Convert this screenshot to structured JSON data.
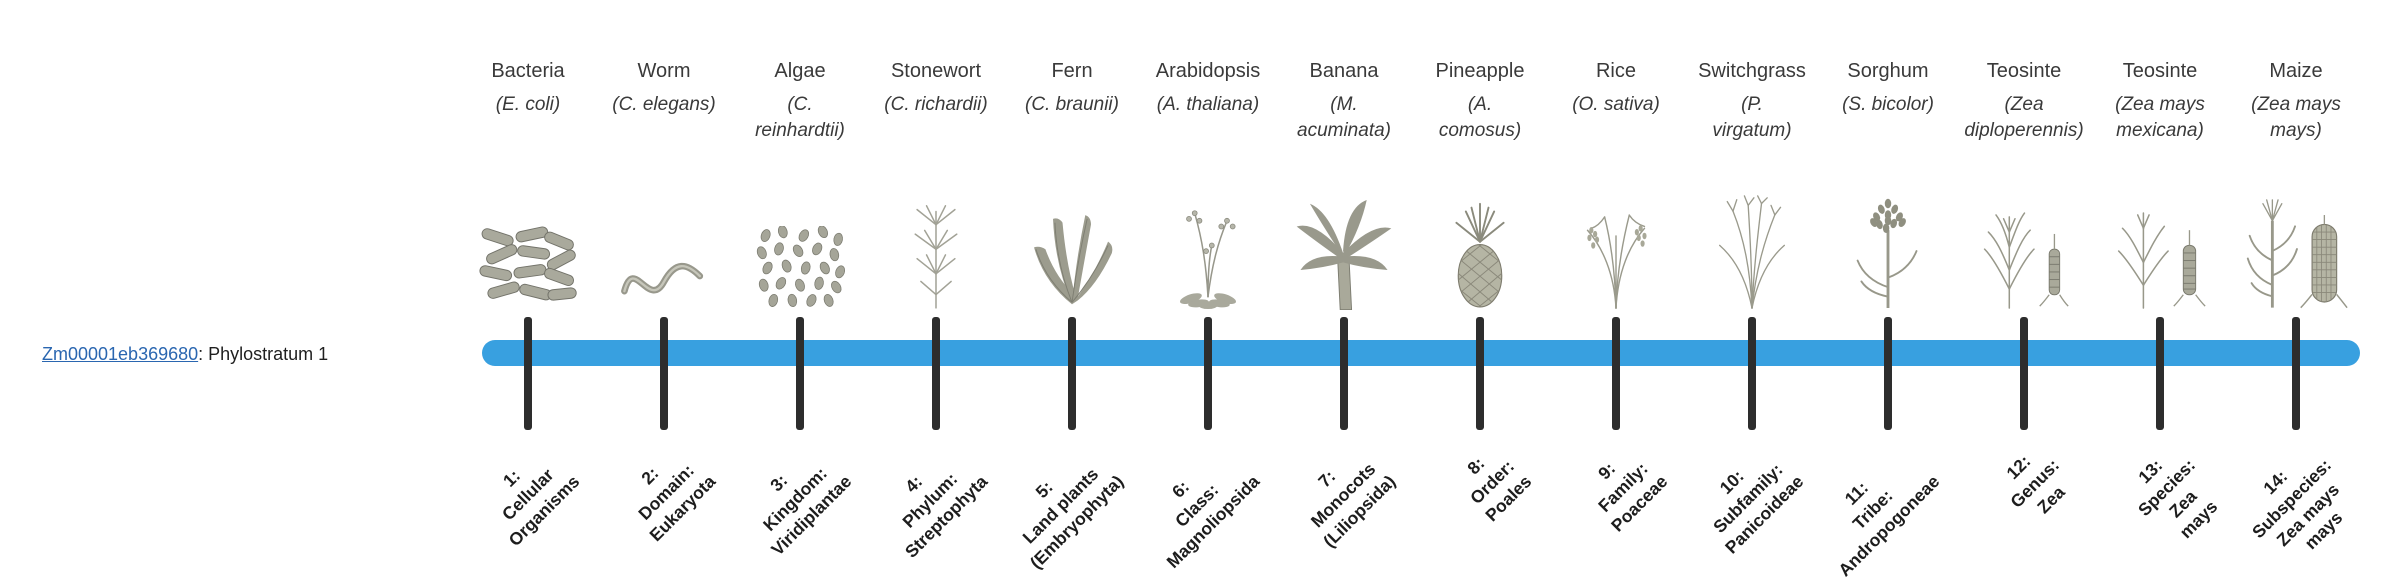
{
  "figure": {
    "background": "#ffffff",
    "bar_color": "#38a0e0",
    "tick_color": "#2d2d2d",
    "link_color": "#2a66b0",
    "gene": {
      "id": "Zm00001eb369680",
      "rest": ": Phylostratum 1"
    }
  },
  "organisms": [
    {
      "name": "Bacteria",
      "scientific_name": "(E. coli)",
      "sci_lines": [
        "(E. coli)"
      ],
      "icon": "bacteria-illustration",
      "tier_label": "1: Cellular Organisms",
      "tier_lines": [
        "1:",
        "Cellular",
        "Organisms"
      ]
    },
    {
      "name": "Worm",
      "scientific_name": "(C. elegans)",
      "sci_lines": [
        "(C. elegans)"
      ],
      "icon": "worm-illustration",
      "tier_label": "2: Domain: Eukaryota",
      "tier_lines": [
        "2:",
        "Domain:",
        "Eukaryota"
      ]
    },
    {
      "name": "Algae",
      "scientific_name": "(C. reinhardtii)",
      "sci_lines": [
        "(C.",
        "reinhardtii)"
      ],
      "icon": "algae-illustration",
      "tier_label": "3: Kingdom: Viridiplantae",
      "tier_lines": [
        "3:",
        "Kingdom:",
        "Viridiplantae"
      ]
    },
    {
      "name": "Stonewort",
      "scientific_name": "(C. richardii)",
      "sci_lines": [
        "(C. richardii)"
      ],
      "icon": "stonewort-illustration",
      "tier_label": "4: Phylum: Streptophyta",
      "tier_lines": [
        "4:",
        "Phylum:",
        "Streptophyta"
      ]
    },
    {
      "name": "Fern",
      "scientific_name": "(C. braunii)",
      "sci_lines": [
        "(C. braunii)"
      ],
      "icon": "fern-illustration",
      "tier_label": "5: Land plants (Embryophyta)",
      "tier_lines": [
        "5:",
        "Land plants",
        "(Embryophyta)"
      ]
    },
    {
      "name": "Arabidopsis",
      "scientific_name": "(A. thaliana)",
      "sci_lines": [
        "(A. thaliana)"
      ],
      "icon": "arabidopsis-illustration",
      "tier_label": "6: Class: Magnoliopsida",
      "tier_lines": [
        "6:",
        "Class:",
        "Magnoliopsida"
      ]
    },
    {
      "name": "Banana",
      "scientific_name": "(M. acuminata)",
      "sci_lines": [
        "(M.",
        "acuminata)"
      ],
      "icon": "banana-illustration",
      "tier_label": "7: Monocots (Liliopsida)",
      "tier_lines": [
        "7:",
        "Monocots",
        "(Liliopsida)"
      ]
    },
    {
      "name": "Pineapple",
      "scientific_name": "(A. comosus)",
      "sci_lines": [
        "(A.",
        "comosus)"
      ],
      "icon": "pineapple-illustration",
      "tier_label": "8: Order: Poales",
      "tier_lines": [
        "8:",
        "Order:",
        "Poales"
      ]
    },
    {
      "name": "Rice",
      "scientific_name": "(O. sativa)",
      "sci_lines": [
        "(O. sativa)"
      ],
      "icon": "rice-illustration",
      "tier_label": "9: Family: Poaceae",
      "tier_lines": [
        "9:",
        "Family:",
        "Poaceae"
      ]
    },
    {
      "name": "Switchgrass",
      "scientific_name": "(P. virgatum)",
      "sci_lines": [
        "(P.",
        "virgatum)"
      ],
      "icon": "switchgrass-illustration",
      "tier_label": "10: Subfamily: Panicoideae",
      "tier_lines": [
        "10:",
        "Subfamily:",
        "Panicoideae"
      ]
    },
    {
      "name": "Sorghum",
      "scientific_name": "(S. bicolor)",
      "sci_lines": [
        "(S. bicolor)"
      ],
      "icon": "sorghum-illustration",
      "tier_label": "11: Tribe: Andropogoneae",
      "tier_lines": [
        "11:",
        "Tribe:",
        "Andropogoneae"
      ]
    },
    {
      "name": "Teosinte",
      "scientific_name": "(Zea diploperennis)",
      "sci_lines": [
        "(Zea",
        "diploperennis)"
      ],
      "icon": "teosinte-diploperennis-illustration",
      "tier_label": "12: Genus: Zea",
      "tier_lines": [
        "12:",
        "Genus:",
        "Zea"
      ]
    },
    {
      "name": "Teosinte",
      "scientific_name": "(Zea mays mexicana)",
      "sci_lines": [
        "(Zea mays",
        "mexicana)"
      ],
      "icon": "teosinte-mexicana-illustration",
      "tier_label": "13: Species: Zea mays",
      "tier_lines": [
        "13:",
        "Species:",
        "Zea",
        "mays"
      ]
    },
    {
      "name": "Maize",
      "scientific_name": "(Zea mays mays)",
      "sci_lines": [
        "(Zea mays",
        "mays)"
      ],
      "icon": "maize-illustration",
      "tier_label": "14: Subspecies: Zea mays mays",
      "tier_lines": [
        "14:",
        "Subspecies:",
        "Zea mays",
        "mays"
      ]
    }
  ]
}
